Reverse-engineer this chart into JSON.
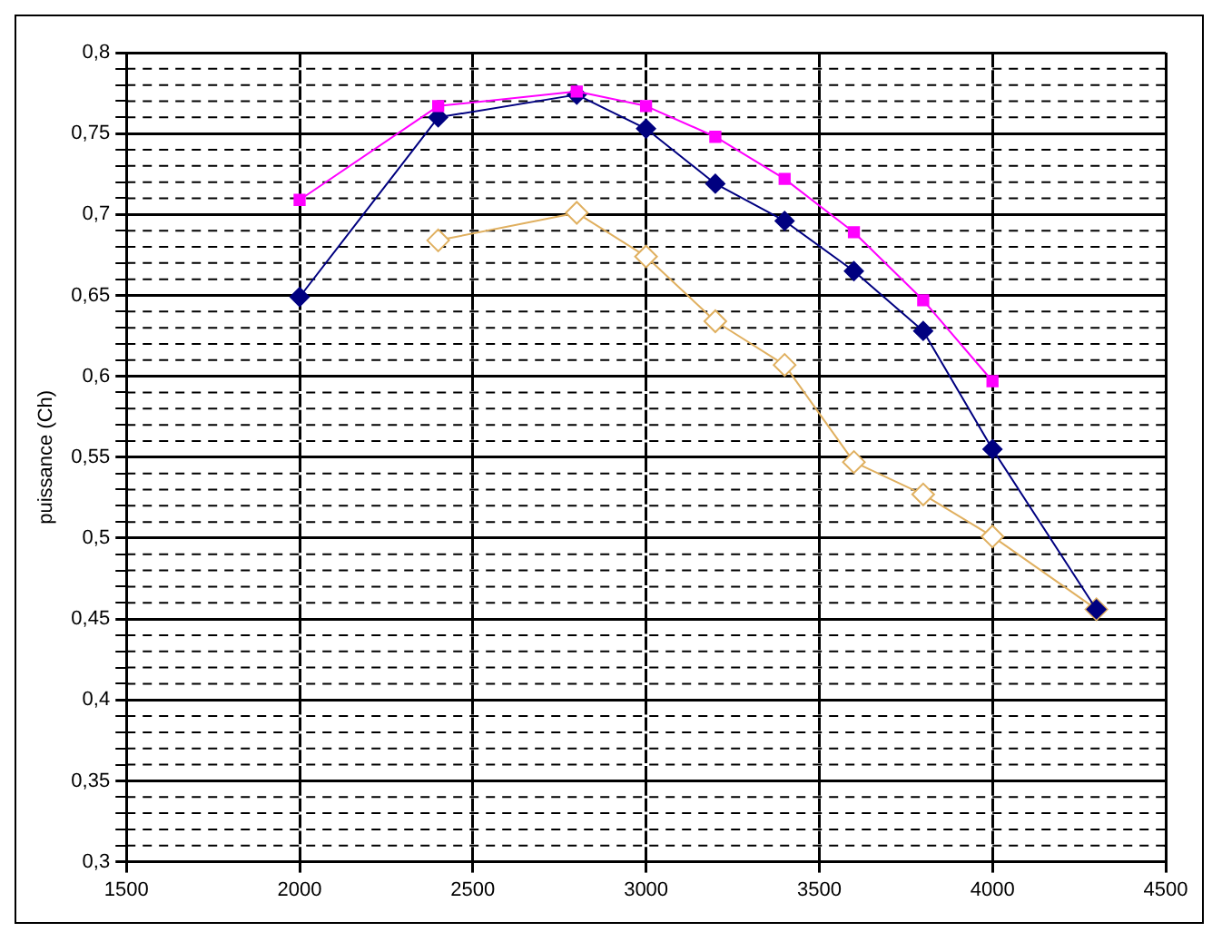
{
  "chart_data": {
    "type": "line",
    "ylabel": "puissance (Ch)",
    "series": [
      {
        "color": "#ff00ff",
        "marker": "square",
        "x": [
          2000,
          2400,
          2800,
          3000,
          3200,
          3400,
          3600,
          3800,
          4000
        ],
        "values": [
          0.709,
          0.767,
          0.776,
          0.767,
          0.748,
          0.722,
          0.689,
          0.647,
          0.597
        ]
      },
      {
        "color": "#000080",
        "marker": "diamond",
        "x": [
          2000,
          2400,
          2800,
          3000,
          3200,
          3400,
          3600,
          3800,
          4000,
          4300
        ],
        "values": [
          0.649,
          0.76,
          0.774,
          0.753,
          0.719,
          0.696,
          0.665,
          0.628,
          0.555,
          0.456
        ]
      },
      {
        "color": "#e0b060",
        "marker": "diamond",
        "x": [
          2400,
          2800,
          3000,
          3200,
          3400,
          3600,
          3800,
          4000,
          4300
        ],
        "values": [
          0.684,
          0.701,
          0.674,
          0.634,
          0.607,
          0.547,
          0.527,
          0.501,
          0.456
        ]
      }
    ],
    "xlim": [
      1500,
      4500
    ],
    "xticks": [
      1500,
      2000,
      2500,
      3000,
      3500,
      4000,
      4500
    ],
    "ylim": [
      0.3,
      0.8
    ],
    "yticks": [
      {
        "value": 0.3,
        "label": "0,3"
      },
      {
        "value": 0.31,
        "label": null
      },
      {
        "value": 0.32,
        "label": null
      },
      {
        "value": 0.33,
        "label": null
      },
      {
        "value": 0.34,
        "label": null
      },
      {
        "value": 0.35,
        "label": "0,35"
      },
      {
        "value": 0.36,
        "label": null
      },
      {
        "value": 0.37,
        "label": null
      },
      {
        "value": 0.38,
        "label": null
      },
      {
        "value": 0.39,
        "label": null
      },
      {
        "value": 0.4,
        "label": "0,4"
      },
      {
        "value": 0.41,
        "label": null
      },
      {
        "value": 0.42,
        "label": null
      },
      {
        "value": 0.43,
        "label": null
      },
      {
        "value": 0.44,
        "label": null
      },
      {
        "value": 0.45,
        "label": "0,45"
      },
      {
        "value": 0.46,
        "label": null
      },
      {
        "value": 0.47,
        "label": null
      },
      {
        "value": 0.48,
        "label": null
      },
      {
        "value": 0.49,
        "label": null
      },
      {
        "value": 0.5,
        "label": "0,5"
      },
      {
        "value": 0.51,
        "label": null
      },
      {
        "value": 0.52,
        "label": null
      },
      {
        "value": 0.53,
        "label": null
      },
      {
        "value": 0.54,
        "label": null
      },
      {
        "value": 0.55,
        "label": "0,55"
      },
      {
        "value": 0.56,
        "label": null
      },
      {
        "value": 0.57,
        "label": null
      },
      {
        "value": 0.58,
        "label": null
      },
      {
        "value": 0.59,
        "label": null
      },
      {
        "value": 0.6,
        "label": "0,6"
      },
      {
        "value": 0.61,
        "label": null
      },
      {
        "value": 0.62,
        "label": null
      },
      {
        "value": 0.63,
        "label": null
      },
      {
        "value": 0.64,
        "label": null
      },
      {
        "value": 0.65,
        "label": "0,65"
      },
      {
        "value": 0.66,
        "label": null
      },
      {
        "value": 0.67,
        "label": null
      },
      {
        "value": 0.68,
        "label": null
      },
      {
        "value": 0.69,
        "label": null
      },
      {
        "value": 0.7,
        "label": "0,7"
      },
      {
        "value": 0.71,
        "label": null
      },
      {
        "value": 0.72,
        "label": null
      },
      {
        "value": 0.73,
        "label": null
      },
      {
        "value": 0.74,
        "label": null
      },
      {
        "value": 0.75,
        "label": "0,75"
      },
      {
        "value": 0.76,
        "label": null
      },
      {
        "value": 0.77,
        "label": null
      },
      {
        "value": 0.78,
        "label": null
      },
      {
        "value": 0.79,
        "label": null
      },
      {
        "value": 0.8,
        "label": "0,8"
      }
    ],
    "grid": true,
    "legend": false,
    "line_style": "solid"
  }
}
